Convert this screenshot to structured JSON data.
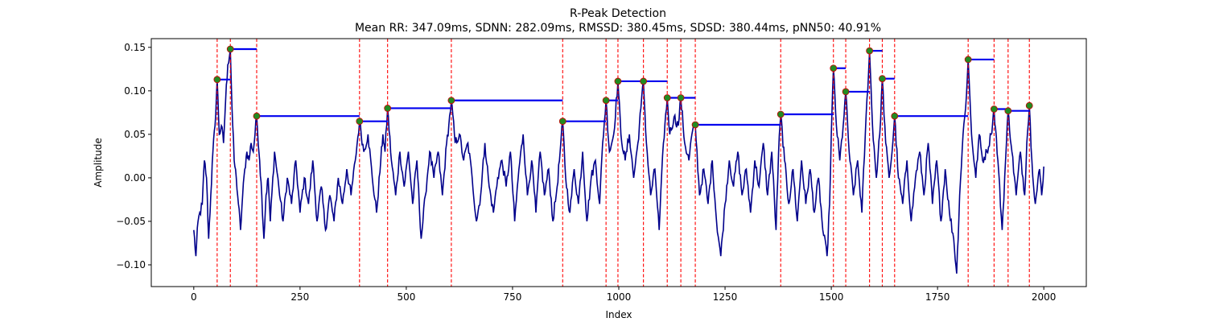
{
  "chart_data": {
    "type": "line",
    "title": "R-Peak Detection",
    "subtitle": "Mean RR: 347.09ms, SDNN: 282.09ms, RMSSD: 380.45ms, SDSD: 380.44ms, pNN50: 40.91%",
    "xlabel": "Index",
    "ylabel": "Amplitude",
    "xlim": [
      -100,
      2100
    ],
    "ylim": [
      -0.125,
      0.16
    ],
    "xticks": [
      0,
      250,
      500,
      750,
      1000,
      1250,
      1500,
      1750,
      2000
    ],
    "yticks": [
      -0.1,
      -0.05,
      0.0,
      0.05,
      0.1,
      0.15
    ],
    "xtick_labels": [
      "0",
      "250",
      "500",
      "750",
      "1000",
      "1250",
      "1500",
      "1750",
      "2000"
    ],
    "ytick_labels": [
      "−0.10",
      "−0.05",
      "0.00",
      "0.05",
      "0.10",
      "0.15"
    ],
    "grid": false,
    "signal": {
      "color": "#00008b",
      "n_points": 2000,
      "anchors": [
        [
          0,
          -0.06
        ],
        [
          5,
          -0.09
        ],
        [
          10,
          -0.05
        ],
        [
          20,
          -0.03
        ],
        [
          25,
          0.02
        ],
        [
          30,
          0.0
        ],
        [
          35,
          -0.07
        ],
        [
          40,
          -0.02
        ],
        [
          45,
          0.03
        ],
        [
          50,
          0.06
        ],
        [
          55,
          0.113
        ],
        [
          60,
          0.05
        ],
        [
          65,
          0.06
        ],
        [
          70,
          0.04
        ],
        [
          75,
          0.09
        ],
        [
          80,
          0.13
        ],
        [
          86,
          0.148
        ],
        [
          90,
          0.08
        ],
        [
          95,
          0.02
        ],
        [
          100,
          0.0
        ],
        [
          105,
          -0.03
        ],
        [
          110,
          -0.06
        ],
        [
          115,
          -0.02
        ],
        [
          120,
          0.01
        ],
        [
          125,
          0.03
        ],
        [
          130,
          0.02
        ],
        [
          135,
          0.04
        ],
        [
          140,
          0.03
        ],
        [
          148,
          0.071
        ],
        [
          155,
          0.02
        ],
        [
          160,
          -0.02
        ],
        [
          165,
          -0.07
        ],
        [
          170,
          -0.02
        ],
        [
          175,
          0.0
        ],
        [
          180,
          -0.05
        ],
        [
          190,
          0.03
        ],
        [
          200,
          -0.01
        ],
        [
          210,
          -0.05
        ],
        [
          220,
          0.0
        ],
        [
          230,
          -0.03
        ],
        [
          240,
          0.02
        ],
        [
          250,
          -0.04
        ],
        [
          260,
          0.0
        ],
        [
          270,
          -0.03
        ],
        [
          280,
          0.02
        ],
        [
          290,
          -0.05
        ],
        [
          300,
          -0.01
        ],
        [
          310,
          -0.06
        ],
        [
          320,
          -0.02
        ],
        [
          330,
          -0.05
        ],
        [
          340,
          0.0
        ],
        [
          350,
          -0.03
        ],
        [
          360,
          0.01
        ],
        [
          370,
          -0.02
        ],
        [
          380,
          0.02
        ],
        [
          390,
          0.065
        ],
        [
          400,
          0.03
        ],
        [
          410,
          0.05
        ],
        [
          420,
          0.0
        ],
        [
          430,
          -0.04
        ],
        [
          440,
          0.02
        ],
        [
          445,
          0.05
        ],
        [
          450,
          0.03
        ],
        [
          456,
          0.08
        ],
        [
          465,
          0.02
        ],
        [
          475,
          -0.02
        ],
        [
          485,
          0.03
        ],
        [
          495,
          -0.01
        ],
        [
          505,
          0.03
        ],
        [
          515,
          -0.03
        ],
        [
          525,
          0.02
        ],
        [
          535,
          -0.07
        ],
        [
          545,
          -0.02
        ],
        [
          555,
          0.03
        ],
        [
          565,
          0.0
        ],
        [
          575,
          0.03
        ],
        [
          585,
          -0.02
        ],
        [
          595,
          0.04
        ],
        [
          600,
          0.06
        ],
        [
          606,
          0.089
        ],
        [
          615,
          0.04
        ],
        [
          625,
          0.05
        ],
        [
          635,
          0.02
        ],
        [
          645,
          0.04
        ],
        [
          655,
          0.0
        ],
        [
          665,
          -0.05
        ],
        [
          675,
          -0.02
        ],
        [
          685,
          0.04
        ],
        [
          695,
          -0.01
        ],
        [
          705,
          -0.04
        ],
        [
          715,
          0.0
        ],
        [
          725,
          0.02
        ],
        [
          735,
          -0.01
        ],
        [
          745,
          0.03
        ],
        [
          755,
          -0.05
        ],
        [
          765,
          0.01
        ],
        [
          775,
          0.05
        ],
        [
          785,
          -0.02
        ],
        [
          795,
          0.02
        ],
        [
          805,
          -0.04
        ],
        [
          815,
          0.03
        ],
        [
          825,
          -0.02
        ],
        [
          835,
          0.01
        ],
        [
          845,
          -0.05
        ],
        [
          855,
          -0.01
        ],
        [
          862,
          0.03
        ],
        [
          868,
          0.065
        ],
        [
          875,
          0.0
        ],
        [
          885,
          -0.04
        ],
        [
          895,
          0.01
        ],
        [
          905,
          -0.03
        ],
        [
          915,
          0.03
        ],
        [
          925,
          -0.05
        ],
        [
          935,
          0.0
        ],
        [
          945,
          0.02
        ],
        [
          955,
          -0.03
        ],
        [
          962,
          0.04
        ],
        [
          970,
          0.089
        ],
        [
          978,
          0.03
        ],
        [
          988,
          0.05
        ],
        [
          998,
          0.111
        ],
        [
          1005,
          0.05
        ],
        [
          1015,
          0.02
        ],
        [
          1025,
          0.05
        ],
        [
          1035,
          0.0
        ],
        [
          1045,
          0.04
        ],
        [
          1052,
          0.08
        ],
        [
          1058,
          0.111
        ],
        [
          1065,
          0.04
        ],
        [
          1075,
          -0.02
        ],
        [
          1085,
          0.01
        ],
        [
          1095,
          -0.06
        ],
        [
          1105,
          0.04
        ],
        [
          1114,
          0.092
        ],
        [
          1120,
          0.05
        ],
        [
          1130,
          0.07
        ],
        [
          1140,
          0.06
        ],
        [
          1146,
          0.092
        ],
        [
          1155,
          0.04
        ],
        [
          1165,
          0.02
        ],
        [
          1172,
          0.05
        ],
        [
          1180,
          0.061
        ],
        [
          1190,
          -0.02
        ],
        [
          1200,
          0.01
        ],
        [
          1210,
          -0.03
        ],
        [
          1220,
          0.02
        ],
        [
          1230,
          -0.05
        ],
        [
          1240,
          -0.09
        ],
        [
          1250,
          -0.03
        ],
        [
          1260,
          0.02
        ],
        [
          1270,
          -0.01
        ],
        [
          1280,
          0.03
        ],
        [
          1290,
          -0.02
        ],
        [
          1300,
          0.01
        ],
        [
          1310,
          -0.04
        ],
        [
          1320,
          0.02
        ],
        [
          1330,
          -0.01
        ],
        [
          1340,
          0.04
        ],
        [
          1350,
          -0.02
        ],
        [
          1360,
          0.03
        ],
        [
          1370,
          -0.06
        ],
        [
          1376,
          0.03
        ],
        [
          1381,
          0.073
        ],
        [
          1390,
          0.02
        ],
        [
          1400,
          -0.03
        ],
        [
          1410,
          0.01
        ],
        [
          1420,
          -0.05
        ],
        [
          1430,
          0.02
        ],
        [
          1440,
          -0.03
        ],
        [
          1450,
          0.01
        ],
        [
          1460,
          -0.04
        ],
        [
          1470,
          0.0
        ],
        [
          1480,
          -0.06
        ],
        [
          1490,
          -0.09
        ],
        [
          1496,
          -0.03
        ],
        [
          1500,
          0.05
        ],
        [
          1505,
          0.126
        ],
        [
          1512,
          0.06
        ],
        [
          1520,
          0.02
        ],
        [
          1528,
          0.06
        ],
        [
          1534,
          0.099
        ],
        [
          1542,
          0.03
        ],
        [
          1552,
          -0.02
        ],
        [
          1562,
          0.02
        ],
        [
          1572,
          -0.04
        ],
        [
          1580,
          0.05
        ],
        [
          1590,
          0.146
        ],
        [
          1597,
          0.06
        ],
        [
          1606,
          0.0
        ],
        [
          1614,
          0.05
        ],
        [
          1620,
          0.114
        ],
        [
          1628,
          0.04
        ],
        [
          1636,
          0.0
        ],
        [
          1643,
          0.03
        ],
        [
          1649,
          0.071
        ],
        [
          1658,
          0.0
        ],
        [
          1668,
          -0.03
        ],
        [
          1678,
          0.02
        ],
        [
          1688,
          -0.05
        ],
        [
          1698,
          0.0
        ],
        [
          1708,
          0.03
        ],
        [
          1718,
          -0.02
        ],
        [
          1728,
          0.04
        ],
        [
          1738,
          -0.03
        ],
        [
          1748,
          0.02
        ],
        [
          1758,
          -0.05
        ],
        [
          1768,
          0.01
        ],
        [
          1778,
          -0.04
        ],
        [
          1788,
          -0.07
        ],
        [
          1795,
          -0.11
        ],
        [
          1802,
          -0.02
        ],
        [
          1810,
          0.05
        ],
        [
          1816,
          0.08
        ],
        [
          1822,
          0.136
        ],
        [
          1830,
          0.05
        ],
        [
          1840,
          0.0
        ],
        [
          1848,
          0.05
        ],
        [
          1856,
          0.02
        ],
        [
          1866,
          0.03
        ],
        [
          1876,
          0.05
        ],
        [
          1883,
          0.079
        ],
        [
          1892,
          0.02
        ],
        [
          1902,
          -0.06
        ],
        [
          1910,
          0.02
        ],
        [
          1916,
          0.077
        ],
        [
          1925,
          0.03
        ],
        [
          1935,
          -0.02
        ],
        [
          1945,
          0.03
        ],
        [
          1955,
          -0.02
        ],
        [
          1960,
          0.04
        ],
        [
          1966,
          0.083
        ],
        [
          1972,
          0.02
        ],
        [
          1980,
          -0.03
        ],
        [
          1990,
          0.01
        ],
        [
          1995,
          -0.02
        ],
        [
          2000,
          0.013
        ]
      ]
    },
    "peaks": {
      "marker_color": "#228b22",
      "edge_color": "#cc0000",
      "vline_color": "#ff0000",
      "rr_line_color": "#0000ee",
      "x": [
        55,
        86,
        148,
        390,
        456,
        606,
        868,
        970,
        998,
        1058,
        1114,
        1146,
        1180,
        1381,
        1505,
        1534,
        1590,
        1620,
        1649,
        1822,
        1883,
        1916,
        1966
      ],
      "y": [
        0.113,
        0.148,
        0.071,
        0.065,
        0.08,
        0.089,
        0.065,
        0.089,
        0.111,
        0.111,
        0.092,
        0.092,
        0.061,
        0.073,
        0.126,
        0.099,
        0.146,
        0.114,
        0.071,
        0.136,
        0.079,
        0.077,
        0.083
      ]
    }
  }
}
